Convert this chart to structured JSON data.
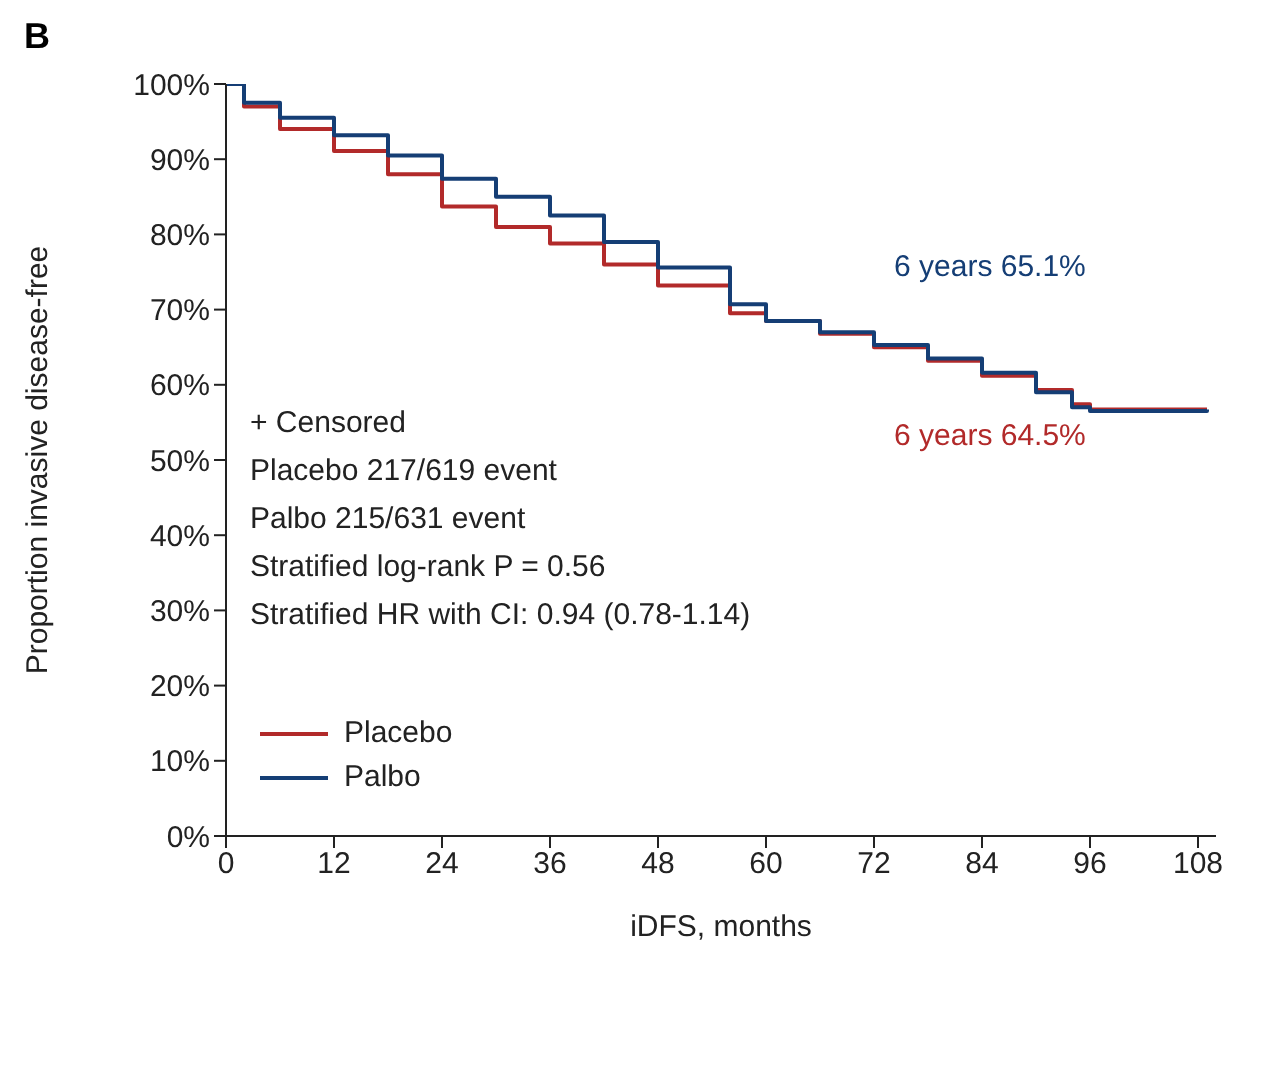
{
  "chart_data": {
    "type": "step",
    "title": "B",
    "xlabel": "iDFS, months",
    "ylabel": "Proportion invasive disease-free",
    "xlim": [
      0,
      110
    ],
    "xticks": [
      0,
      12,
      24,
      36,
      48,
      60,
      72,
      84,
      96,
      108
    ],
    "ylim": [
      0,
      100
    ],
    "yticks": [
      {
        "value": 0,
        "label": "0%"
      },
      {
        "value": 10,
        "label": "10%"
      },
      {
        "value": 20,
        "label": "20%"
      },
      {
        "value": 30,
        "label": "30%"
      },
      {
        "value": 40,
        "label": "40%"
      },
      {
        "value": 50,
        "label": "50%"
      },
      {
        "value": 60,
        "label": "60%"
      },
      {
        "value": 70,
        "label": "70%"
      },
      {
        "value": 80,
        "label": "80%"
      },
      {
        "value": 90,
        "label": "90%"
      },
      {
        "value": 100,
        "label": "100%"
      }
    ],
    "legend": "bottom left",
    "grid": false,
    "series": [
      {
        "name": "Placebo",
        "color": "#b22a2a",
        "x": [
          0,
          2,
          6,
          12,
          18,
          24,
          30,
          36,
          42,
          48,
          56,
          60,
          66,
          72,
          78,
          84,
          90,
          94,
          96,
          109
        ],
        "values": [
          100,
          97,
          94,
          91.1,
          88,
          83.7,
          81,
          78.8,
          76,
          73.2,
          69.5,
          68.5,
          66.8,
          65,
          63.2,
          61.2,
          59.3,
          57.4,
          56.7,
          56.7
        ]
      },
      {
        "name": "Palbo",
        "color": "#153e75",
        "x": [
          0,
          2,
          6,
          12,
          18,
          24,
          30,
          36,
          42,
          48,
          56,
          60,
          66,
          72,
          78,
          84,
          90,
          94,
          96,
          109
        ],
        "values": [
          100,
          97.5,
          95.5,
          93.2,
          90.5,
          87.4,
          85,
          82.5,
          79,
          75.6,
          70.7,
          68.5,
          67,
          65.3,
          63.5,
          61.6,
          59,
          57,
          56.5,
          56.7
        ]
      }
    ],
    "annotations": [
      "+ Censored",
      "Placebo 217/619 event",
      "Palbo 215/631 event",
      "Stratified log-rank P = 0.56",
      "Stratified HR with CI: 0.94 (0.78-1.14)",
      {
        "text": "6 years 64.5%",
        "x": 72,
        "y": 64.5
      },
      {
        "text": "6 years 65.1%",
        "x": 72,
        "y": 65.1
      }
    ]
  }
}
